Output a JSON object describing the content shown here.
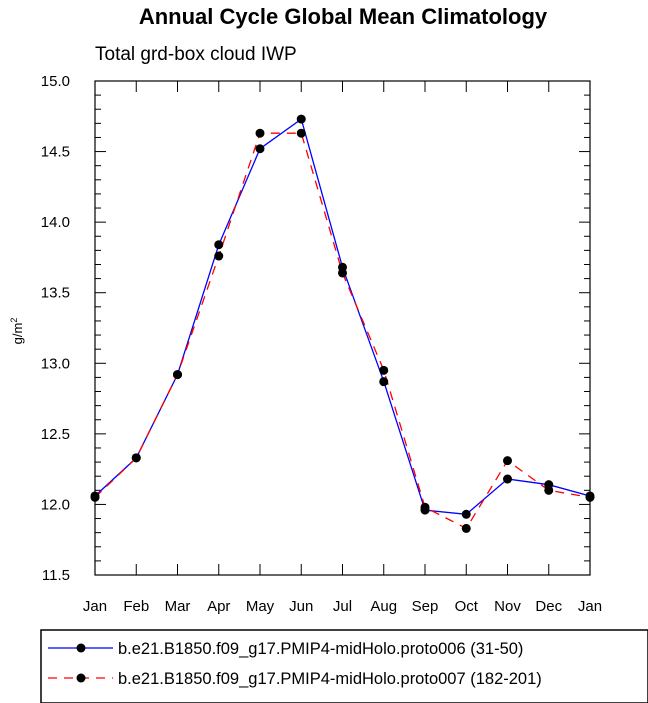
{
  "chart_data": {
    "type": "line",
    "title": "Annual Cycle Global Mean Climatology",
    "subtitle": "Total grd-box cloud IWP",
    "ylabel": "g/m",
    "ylabel_sup": "2",
    "categories": [
      "Jan",
      "Feb",
      "Mar",
      "Apr",
      "May",
      "Jun",
      "Jul",
      "Aug",
      "Sep",
      "Oct",
      "Nov",
      "Dec",
      "Jan"
    ],
    "ylim": [
      11.5,
      15.0
    ],
    "yticks": [
      "11.5",
      "12.0",
      "12.5",
      "13.0",
      "13.5",
      "14.0",
      "14.5",
      "15.0"
    ],
    "series": [
      {
        "name": "b.e21.B1850.f09_g17.PMIP4-midHolo.proto006 (31-50)",
        "color": "#0000ff",
        "dash": "solid",
        "values": [
          12.06,
          12.33,
          12.92,
          13.84,
          14.52,
          14.73,
          13.68,
          12.87,
          11.96,
          11.93,
          12.18,
          12.14,
          12.06
        ]
      },
      {
        "name": "b.e21.B1850.f09_g17.PMIP4-midHolo.proto007 (182-201)",
        "color": "#ff0000",
        "dash": "dashed",
        "values": [
          12.05,
          12.33,
          12.92,
          13.76,
          14.63,
          14.63,
          13.64,
          12.95,
          11.98,
          11.83,
          12.31,
          12.1,
          12.05
        ]
      }
    ]
  }
}
